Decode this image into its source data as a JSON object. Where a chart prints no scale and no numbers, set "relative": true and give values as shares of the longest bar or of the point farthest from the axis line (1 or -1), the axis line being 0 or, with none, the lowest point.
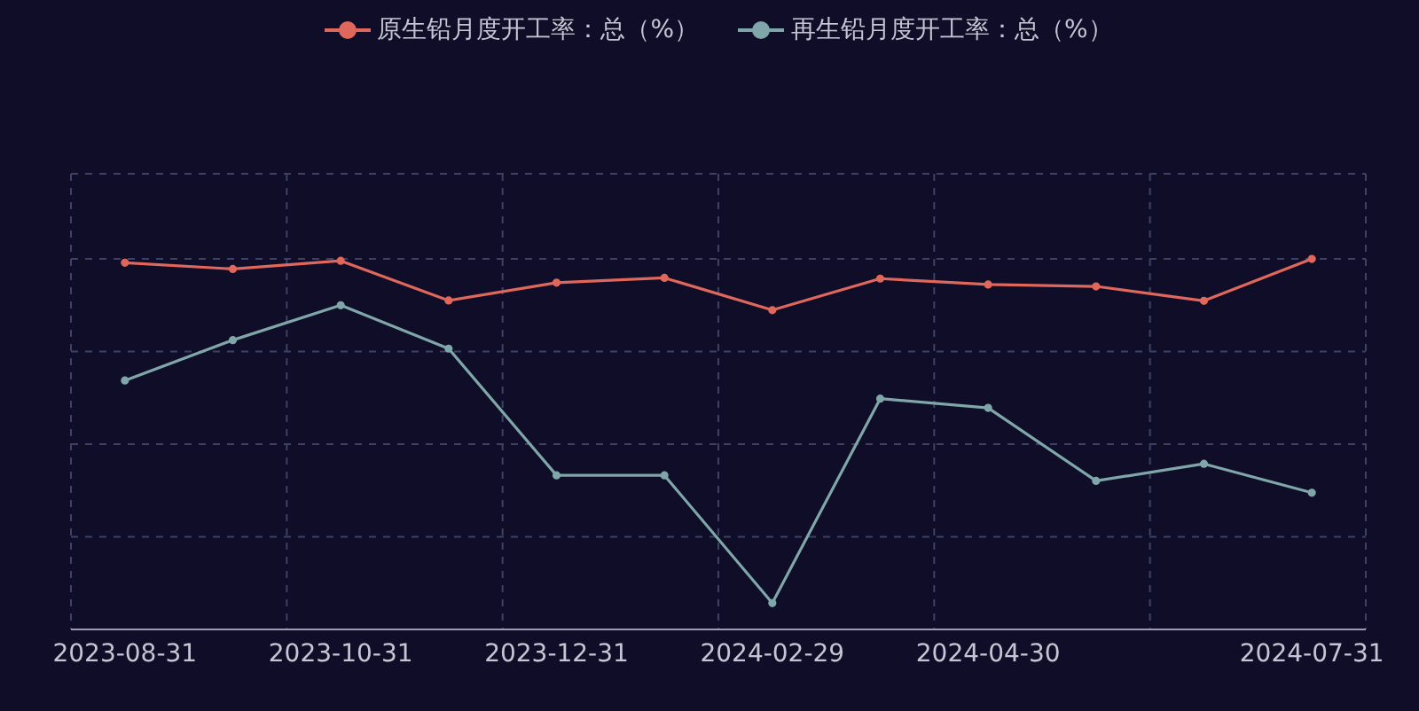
{
  "chart_data": {
    "type": "line",
    "relative": true,
    "categories": [
      "2023-08-31",
      null,
      "2023-10-31",
      null,
      "2023-12-31",
      null,
      "2024-02-29",
      null,
      "2024-04-30",
      null,
      null,
      "2024-07-31"
    ],
    "series": [
      {
        "name": "原生铅月度开工率：总（%）",
        "color": "#e0675c",
        "values": [
          0.99,
          0.973,
          0.995,
          0.888,
          0.936,
          0.949,
          0.862,
          0.947,
          0.931,
          0.926,
          0.887,
          1
        ]
      },
      {
        "name": "再生铅月度开工率：总（%）",
        "color": "#7fa6a8",
        "values": [
          0.672,
          0.781,
          0.875,
          0.758,
          0.416,
          0.416,
          0.071,
          0.623,
          0.598,
          0.401,
          0.447,
          0.369
        ]
      }
    ],
    "grid": true,
    "legend": "top",
    "marker": "circle",
    "line_style": "solid"
  }
}
